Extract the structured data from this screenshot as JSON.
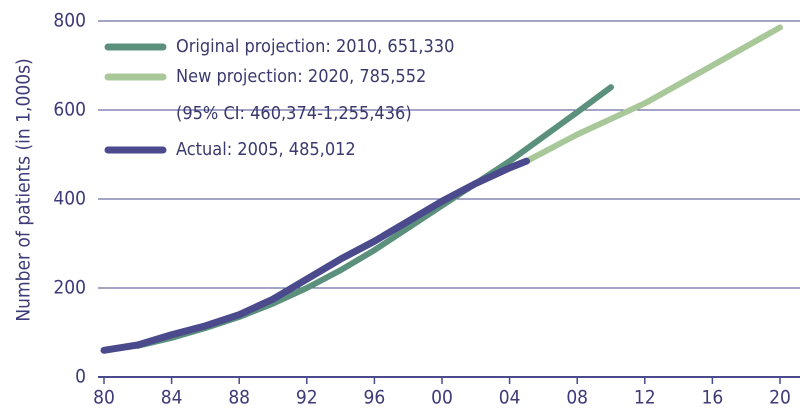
{
  "chart_data": {
    "type": "line",
    "ylabel": "Number of patients (in 1,000s)",
    "xlim": [
      1980,
      2020
    ],
    "xticks": [
      {
        "value": 1980,
        "label": "80"
      },
      {
        "value": 1984,
        "label": "84"
      },
      {
        "value": 1988,
        "label": "88"
      },
      {
        "value": 1992,
        "label": "92"
      },
      {
        "value": 1996,
        "label": "96"
      },
      {
        "value": 2000,
        "label": "00"
      },
      {
        "value": 2004,
        "label": "04"
      },
      {
        "value": 2008,
        "label": "08"
      },
      {
        "value": 2012,
        "label": "12"
      },
      {
        "value": 2016,
        "label": "16"
      },
      {
        "value": 2020,
        "label": "20"
      }
    ],
    "ylim": [
      0,
      800
    ],
    "yticks": [
      0,
      200,
      400,
      600,
      800
    ],
    "grid": true,
    "legend": "top-left",
    "series": [
      {
        "name": "Original projection: 2010, 651,330",
        "color": "#5b917c",
        "x": [
          1982,
          1984,
          1986,
          1988,
          1990,
          1992,
          1994,
          1996,
          1998,
          2000,
          2002,
          2004,
          2006,
          2008,
          2010
        ],
        "values": [
          70,
          88,
          110,
          135,
          165,
          200,
          240,
          285,
          335,
          385,
          435,
          485,
          540,
          595,
          651.33
        ]
      },
      {
        "name": "New projection: 2020, 785,552",
        "note": "(95% CI: 460,374-1,255,436)",
        "color": "#a8c89a",
        "x": [
          2005,
          2008,
          2012,
          2016,
          2020
        ],
        "values": [
          485,
          545,
          615,
          700,
          785.552
        ]
      },
      {
        "name": "Actual: 2005, 485,012",
        "color": "#4a4a8c",
        "x": [
          1980,
          1982,
          1984,
          1986,
          1988,
          1990,
          1992,
          1994,
          1996,
          1998,
          2000,
          2002,
          2004,
          2005
        ],
        "values": [
          60,
          72,
          95,
          115,
          140,
          175,
          220,
          265,
          305,
          350,
          395,
          435,
          470,
          485.012
        ]
      }
    ]
  }
}
